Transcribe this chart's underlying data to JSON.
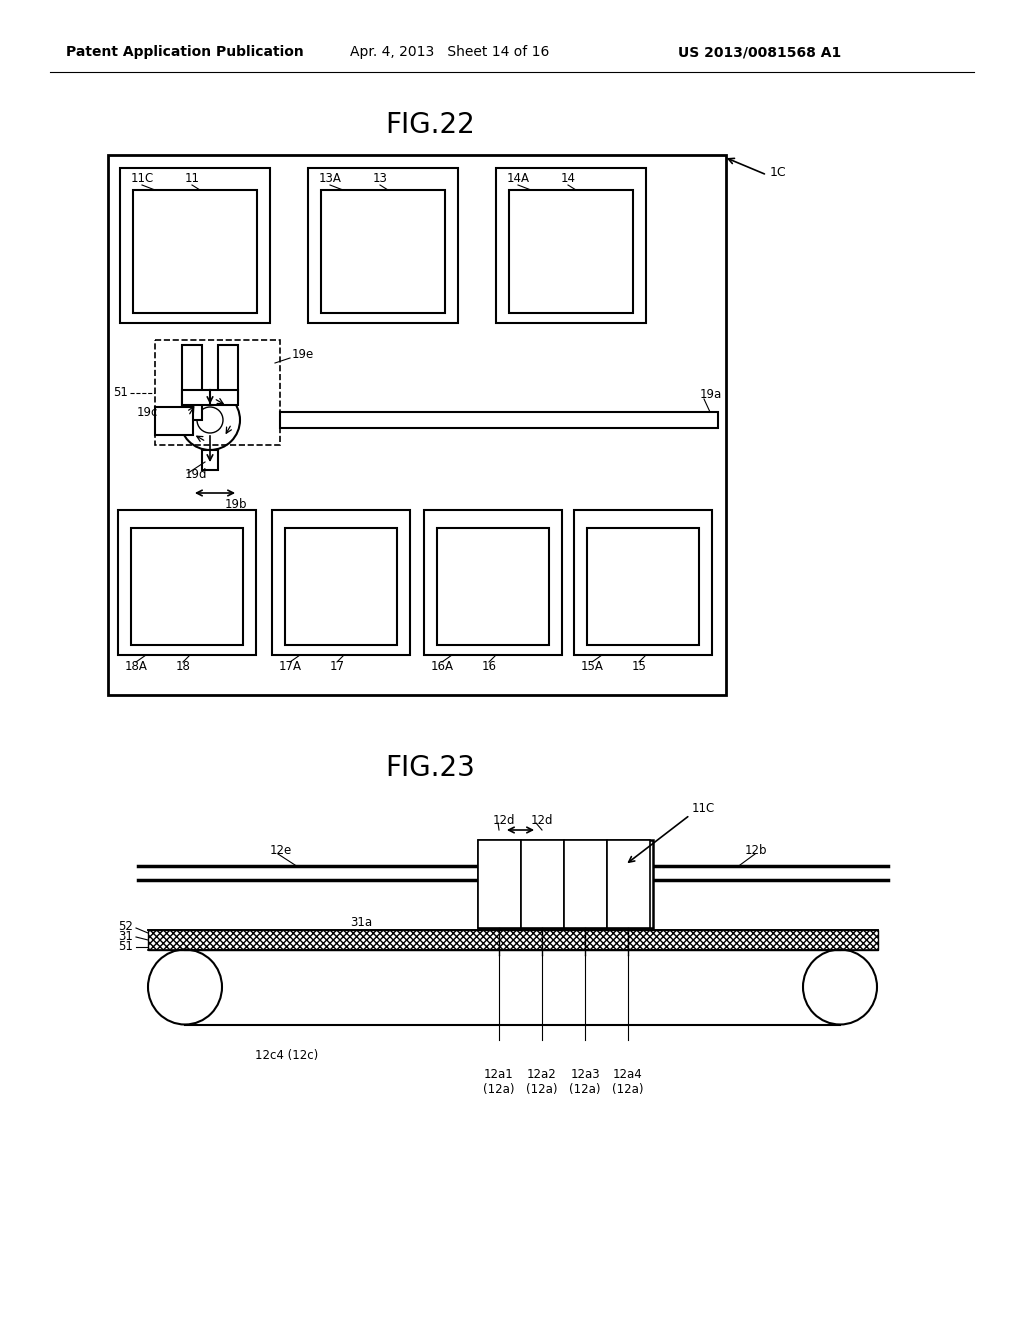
{
  "header_left": "Patent Application Publication",
  "header_mid": "Apr. 4, 2013   Sheet 14 of 16",
  "header_right": "US 2013/0081568 A1",
  "fig22_title": "FIG.22",
  "fig23_title": "FIG.23",
  "bg_color": "#ffffff",
  "line_color": "#000000"
}
